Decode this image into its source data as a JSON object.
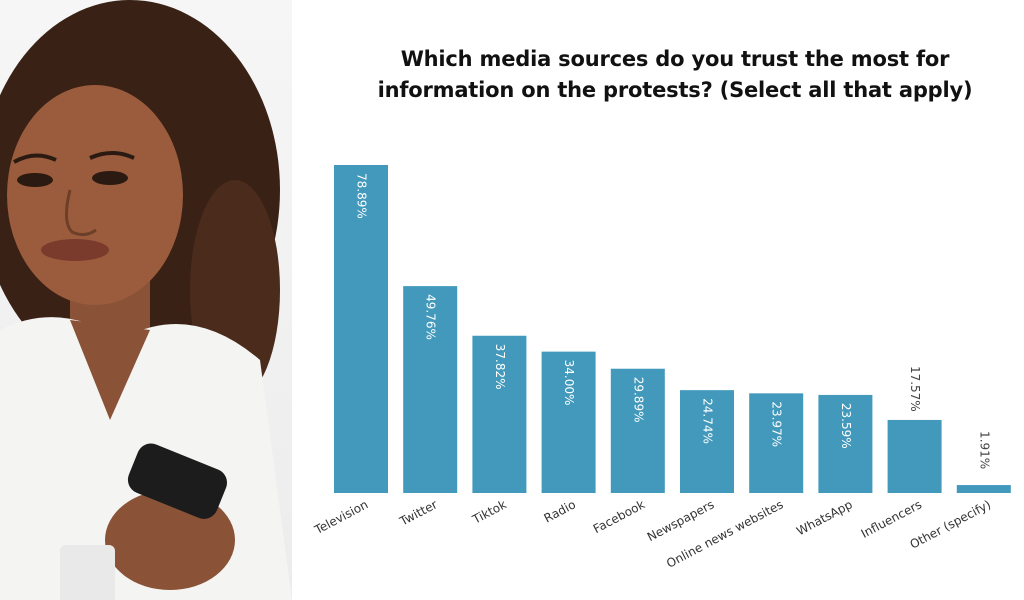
{
  "chart_data": {
    "type": "bar",
    "title": "Which media sources do you trust the most for information on the protests? (Select all that apply)",
    "title_lines": [
      "Which media sources do you trust the most for",
      "information on the protests? (Select all that apply)"
    ],
    "categories": [
      "Television",
      "Twitter",
      "Tiktok",
      "Radio",
      "Facebook",
      "Newspapers",
      "Online news websites",
      "WhatsApp",
      "Influencers",
      "Other (specify)"
    ],
    "values": [
      78.89,
      49.76,
      37.82,
      34.0,
      29.89,
      24.74,
      23.97,
      23.59,
      17.57,
      1.91
    ],
    "data_labels": [
      "78.89%",
      "49.76%",
      "37.82%",
      "34.00%",
      "29.89%",
      "24.74%",
      "23.97%",
      "23.59%",
      "17.57%",
      "1.91%"
    ],
    "ylim": [
      0,
      78.89
    ],
    "grid": false,
    "legend": "none",
    "bar_color": "#4299bc"
  }
}
